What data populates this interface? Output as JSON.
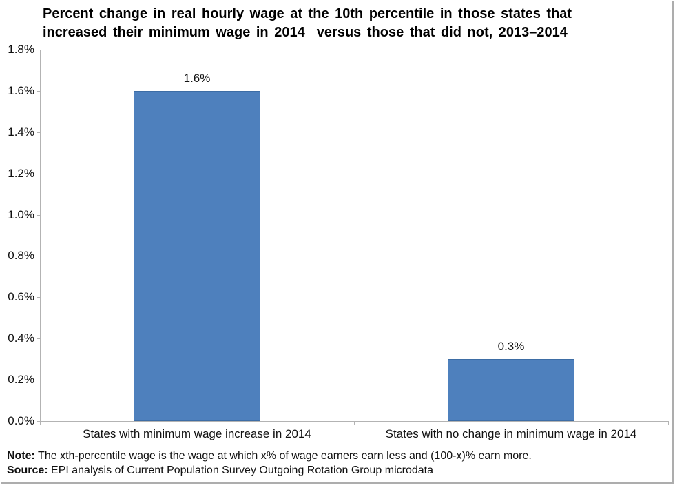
{
  "header": {
    "title_line1": "Percent change in real hourly wage at the 10th percentile in those states that",
    "title_line2": "increased their minimum wage in 2014  versus those that did not, 2013–2014"
  },
  "chart_data": {
    "type": "bar",
    "title": "Percent change in real hourly wage at the 10th percentile in those states that increased their minimum wage in 2014 versus those that did not, 2013–2014",
    "categories": [
      "States with minimum wage increase in 2014",
      "States with no change in minimum wage in 2014"
    ],
    "values": [
      1.6,
      0.3
    ],
    "value_labels": [
      "1.6%",
      "0.3%"
    ],
    "xlabel": "",
    "ylabel": "",
    "ylim": [
      0,
      1.8
    ],
    "ytick_step": 0.2,
    "ytick_labels": [
      "0.0%",
      "0.2%",
      "0.4%",
      "0.6%",
      "0.8%",
      "1.0%",
      "1.2%",
      "1.4%",
      "1.6%",
      "1.8%"
    ],
    "grid": false,
    "legend": false,
    "bar_color": "#4e80bd",
    "bar_border_color": "#3d6da5",
    "axis_color": "#b3b3b3"
  },
  "footer": {
    "note_label": "Note:",
    "note_text": " The xth-percentile wage is the wage at which x% of wage earners earn less and (100-x)% earn more.",
    "source_label": "Source:",
    "source_text": " EPI analysis of Current Population Survey Outgoing Rotation Group microdata"
  }
}
